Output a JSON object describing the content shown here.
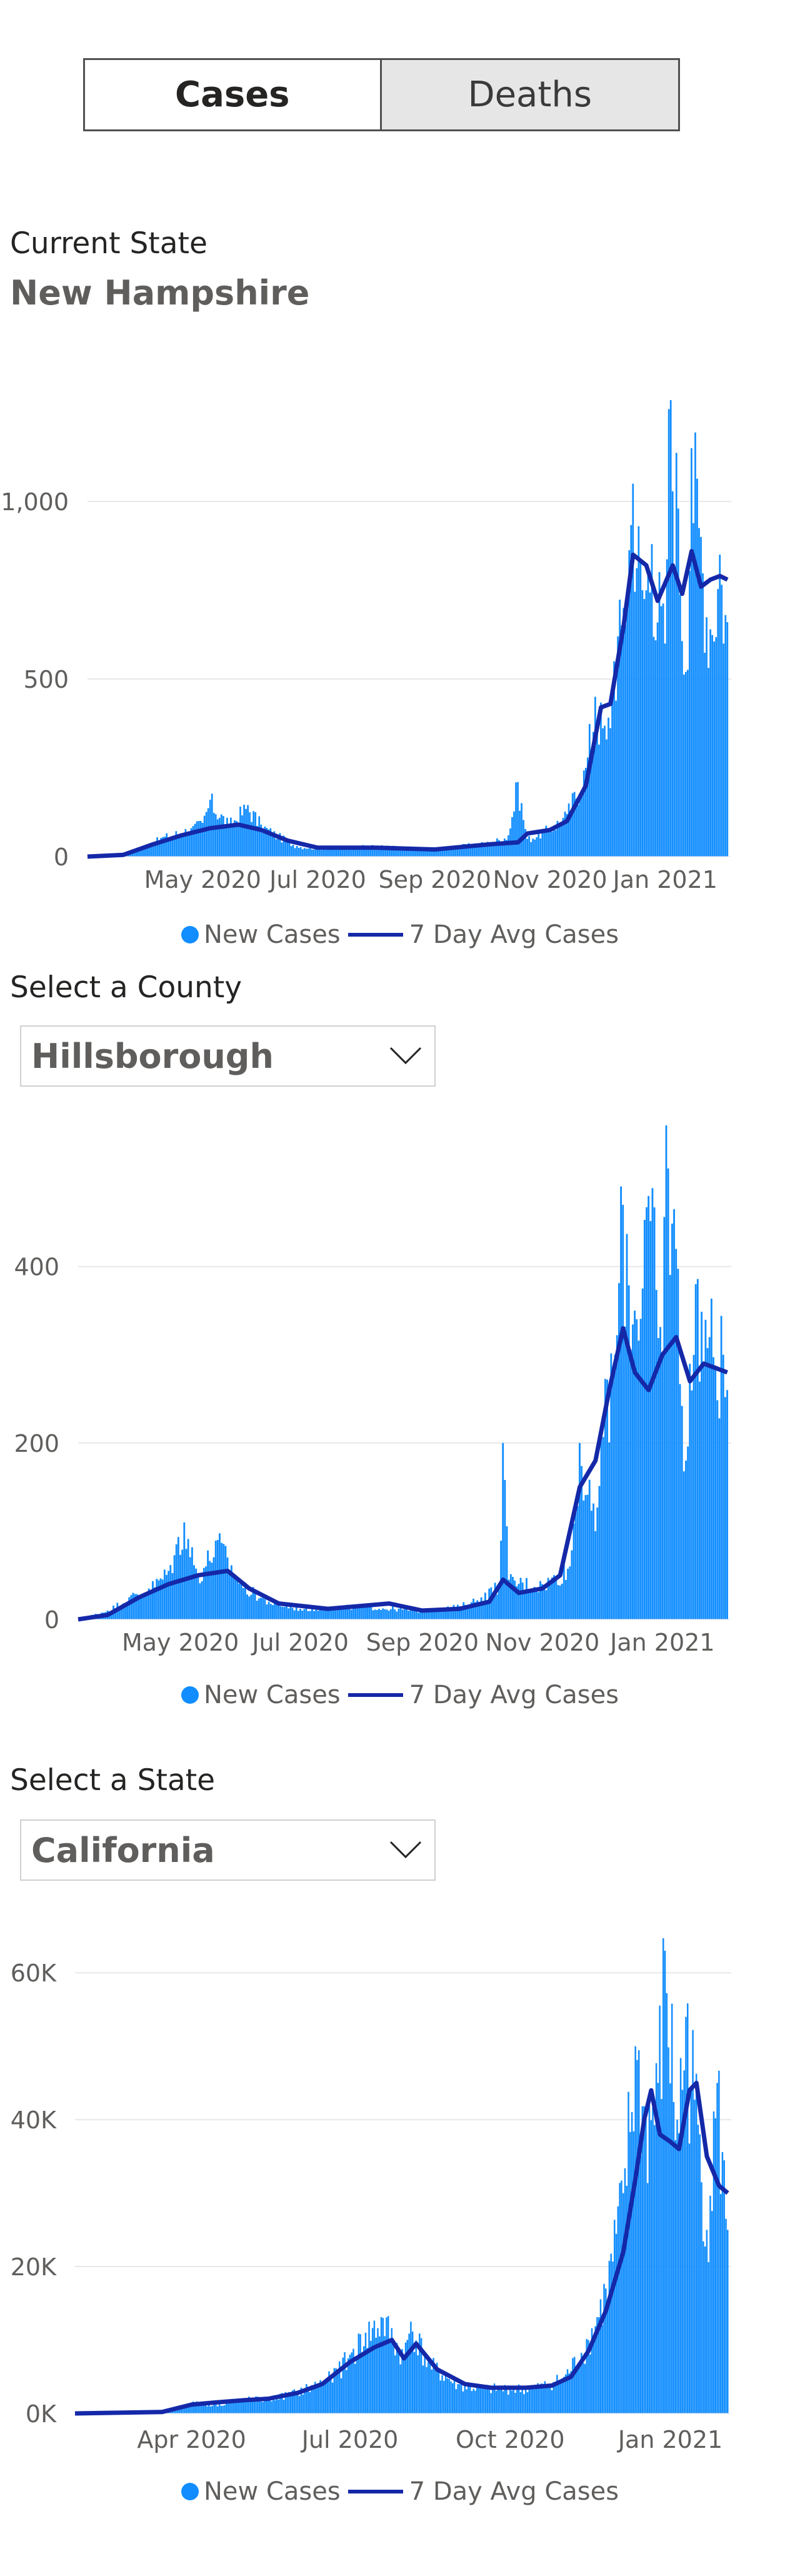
{
  "tabs": [
    {
      "label": "Cases",
      "active": true
    },
    {
      "label": "Deaths",
      "active": false
    }
  ],
  "current_state_label": "Current State",
  "current_state_name": "New Hampshire",
  "county_label": "Select a County",
  "county_value": "Hillsborough",
  "state_label": "Select a State",
  "state_value": "California",
  "colors": {
    "bars": "#118dff",
    "avg_line": "#1428a8",
    "grid": "#e8e8e8",
    "text": "#605e5c"
  },
  "icons": {
    "dropdown": "chevron-down-icon"
  },
  "legend": {
    "bars": "New Cases",
    "line": "7 Day Avg Cases"
  },
  "chart_data": [
    {
      "id": "state",
      "type": "bar",
      "title": "",
      "xlabel": "",
      "ylabel": "",
      "ylim": [
        0,
        1250
      ],
      "y_ticks": [
        0,
        500,
        1000
      ],
      "y_tick_labels": [
        "0",
        "500",
        "1,000"
      ],
      "x_range": [
        "2020-03-01",
        "2021-02-05"
      ],
      "x_ticks": [
        "2020-05-01",
        "2020-07-01",
        "2020-09-01",
        "2020-11-01",
        "2021-01-01"
      ],
      "x_tick_labels": [
        "May 2020",
        "Jul 2020",
        "Sep 2020",
        "Nov 2020",
        "Jan 2021"
      ],
      "grid": true,
      "legend_position": "bottom",
      "series": [
        {
          "name": "New Cases",
          "kind": "bars",
          "points": [
            [
              "2020-03-01",
              0
            ],
            [
              "2020-03-20",
              5
            ],
            [
              "2020-04-01",
              30
            ],
            [
              "2020-04-10",
              55
            ],
            [
              "2020-04-25",
              80
            ],
            [
              "2020-05-01",
              95
            ],
            [
              "2020-05-05",
              160
            ],
            [
              "2020-05-15",
              90
            ],
            [
              "2020-05-25",
              145
            ],
            [
              "2020-06-01",
              90
            ],
            [
              "2020-06-10",
              60
            ],
            [
              "2020-06-20",
              30
            ],
            [
              "2020-07-01",
              25
            ],
            [
              "2020-07-15",
              25
            ],
            [
              "2020-08-01",
              30
            ],
            [
              "2020-08-15",
              25
            ],
            [
              "2020-09-01",
              20
            ],
            [
              "2020-09-15",
              30
            ],
            [
              "2020-10-01",
              40
            ],
            [
              "2020-10-10",
              60
            ],
            [
              "2020-10-15",
              210
            ],
            [
              "2020-10-20",
              50
            ],
            [
              "2020-11-01",
              80
            ],
            [
              "2020-11-10",
              120
            ],
            [
              "2020-11-20",
              250
            ],
            [
              "2020-11-25",
              450
            ],
            [
              "2020-12-01",
              330
            ],
            [
              "2020-12-05",
              550
            ],
            [
              "2020-12-10",
              700
            ],
            [
              "2020-12-15",
              1050
            ],
            [
              "2020-12-20",
              750
            ],
            [
              "2020-12-25",
              880
            ],
            [
              "2021-01-01",
              600
            ],
            [
              "2021-01-03",
              1260
            ],
            [
              "2021-01-08",
              980
            ],
            [
              "2021-01-12",
              520
            ],
            [
              "2021-01-15",
              1150
            ],
            [
              "2021-01-20",
              900
            ],
            [
              "2021-01-25",
              640
            ],
            [
              "2021-01-30",
              850
            ],
            [
              "2021-02-03",
              660
            ]
          ]
        },
        {
          "name": "7 Day Avg Cases",
          "kind": "line",
          "points": [
            [
              "2020-03-01",
              0
            ],
            [
              "2020-03-20",
              5
            ],
            [
              "2020-04-05",
              35
            ],
            [
              "2020-04-20",
              60
            ],
            [
              "2020-05-05",
              80
            ],
            [
              "2020-05-20",
              90
            ],
            [
              "2020-06-01",
              75
            ],
            [
              "2020-06-15",
              45
            ],
            [
              "2020-07-01",
              25
            ],
            [
              "2020-08-01",
              25
            ],
            [
              "2020-09-01",
              20
            ],
            [
              "2020-10-01",
              35
            ],
            [
              "2020-10-15",
              40
            ],
            [
              "2020-10-20",
              65
            ],
            [
              "2020-11-01",
              75
            ],
            [
              "2020-11-10",
              100
            ],
            [
              "2020-11-20",
              200
            ],
            [
              "2020-11-28",
              420
            ],
            [
              "2020-12-03",
              430
            ],
            [
              "2020-12-10",
              650
            ],
            [
              "2020-12-15",
              850
            ],
            [
              "2020-12-22",
              820
            ],
            [
              "2020-12-28",
              720
            ],
            [
              "2021-01-05",
              820
            ],
            [
              "2021-01-10",
              740
            ],
            [
              "2021-01-15",
              860
            ],
            [
              "2021-01-20",
              760
            ],
            [
              "2021-01-25",
              780
            ],
            [
              "2021-01-30",
              790
            ],
            [
              "2021-02-03",
              780
            ]
          ]
        }
      ]
    },
    {
      "id": "county",
      "type": "bar",
      "title": "",
      "xlabel": "",
      "ylabel": "",
      "ylim": [
        0,
        560
      ],
      "y_ticks": [
        0,
        200,
        400
      ],
      "y_tick_labels": [
        "0",
        "200",
        "400"
      ],
      "x_range": [
        "2020-03-10",
        "2021-02-05"
      ],
      "x_ticks": [
        "2020-05-01",
        "2020-07-01",
        "2020-09-01",
        "2020-11-01",
        "2021-01-01"
      ],
      "x_tick_labels": [
        "May 2020",
        "Jul 2020",
        "Sep 2020",
        "Nov 2020",
        "Jan 2021"
      ],
      "grid": true,
      "legend_position": "bottom",
      "series": [
        {
          "name": "New Cases",
          "kind": "bars",
          "points": [
            [
              "2020-03-10",
              0
            ],
            [
              "2020-03-25",
              10
            ],
            [
              "2020-04-05",
              25
            ],
            [
              "2020-04-15",
              35
            ],
            [
              "2020-04-25",
              55
            ],
            [
              "2020-05-03",
              110
            ],
            [
              "2020-05-10",
              50
            ],
            [
              "2020-05-20",
              90
            ],
            [
              "2020-06-01",
              40
            ],
            [
              "2020-06-15",
              20
            ],
            [
              "2020-07-01",
              12
            ],
            [
              "2020-08-01",
              15
            ],
            [
              "2020-09-01",
              10
            ],
            [
              "2020-09-20",
              15
            ],
            [
              "2020-10-01",
              25
            ],
            [
              "2020-10-10",
              40
            ],
            [
              "2020-10-12",
              200
            ],
            [
              "2020-10-15",
              45
            ],
            [
              "2020-11-01",
              40
            ],
            [
              "2020-11-15",
              60
            ],
            [
              "2020-11-20",
              200
            ],
            [
              "2020-11-28",
              100
            ],
            [
              "2020-12-01",
              220
            ],
            [
              "2020-12-08",
              300
            ],
            [
              "2020-12-12",
              470
            ],
            [
              "2020-12-18",
              350
            ],
            [
              "2020-12-25",
              480
            ],
            [
              "2021-01-01",
              300
            ],
            [
              "2021-01-03",
              560
            ],
            [
              "2021-01-08",
              420
            ],
            [
              "2021-01-13",
              180
            ],
            [
              "2021-01-18",
              380
            ],
            [
              "2021-01-25",
              320
            ],
            [
              "2021-02-01",
              300
            ],
            [
              "2021-02-03",
              260
            ]
          ]
        },
        {
          "name": "7 Day Avg Cases",
          "kind": "line",
          "points": [
            [
              "2020-03-10",
              0
            ],
            [
              "2020-03-25",
              5
            ],
            [
              "2020-04-10",
              25
            ],
            [
              "2020-04-25",
              40
            ],
            [
              "2020-05-10",
              50
            ],
            [
              "2020-05-25",
              55
            ],
            [
              "2020-06-05",
              35
            ],
            [
              "2020-06-20",
              18
            ],
            [
              "2020-07-15",
              12
            ],
            [
              "2020-08-15",
              18
            ],
            [
              "2020-09-01",
              10
            ],
            [
              "2020-09-20",
              12
            ],
            [
              "2020-10-05",
              20
            ],
            [
              "2020-10-12",
              45
            ],
            [
              "2020-10-20",
              30
            ],
            [
              "2020-11-01",
              35
            ],
            [
              "2020-11-10",
              50
            ],
            [
              "2020-11-20",
              150
            ],
            [
              "2020-11-28",
              180
            ],
            [
              "2020-12-05",
              260
            ],
            [
              "2020-12-12",
              330
            ],
            [
              "2020-12-18",
              280
            ],
            [
              "2020-12-25",
              260
            ],
            [
              "2021-01-01",
              300
            ],
            [
              "2021-01-08",
              320
            ],
            [
              "2021-01-15",
              270
            ],
            [
              "2021-01-22",
              290
            ],
            [
              "2021-02-03",
              280
            ]
          ]
        }
      ]
    },
    {
      "id": "california",
      "type": "bar",
      "title": "",
      "xlabel": "",
      "ylabel": "",
      "ylim": [
        0,
        63000
      ],
      "y_ticks": [
        0,
        20000,
        40000,
        60000
      ],
      "y_tick_labels": [
        "0K",
        "20K",
        "40K",
        "60K"
      ],
      "x_range": [
        "2020-01-25",
        "2021-02-05"
      ],
      "x_ticks": [
        "2020-04-01",
        "2020-07-01",
        "2020-10-01",
        "2021-01-01"
      ],
      "x_tick_labels": [
        "Apr 2020",
        "Jul 2020",
        "Oct 2020",
        "Jan 2021"
      ],
      "grid": true,
      "legend_position": "bottom",
      "series": [
        {
          "name": "New Cases",
          "kind": "bars",
          "points": [
            [
              "2020-01-25",
              0
            ],
            [
              "2020-03-15",
              200
            ],
            [
              "2020-04-01",
              1500
            ],
            [
              "2020-04-15",
              1200
            ],
            [
              "2020-05-01",
              2000
            ],
            [
              "2020-05-15",
              2000
            ],
            [
              "2020-06-01",
              3000
            ],
            [
              "2020-06-20",
              5000
            ],
            [
              "2020-07-01",
              8000
            ],
            [
              "2020-07-10",
              11000
            ],
            [
              "2020-07-20",
              13000
            ],
            [
              "2020-08-01",
              8000
            ],
            [
              "2020-08-05",
              12500
            ],
            [
              "2020-08-15",
              7000
            ],
            [
              "2020-09-01",
              4000
            ],
            [
              "2020-09-15",
              3500
            ],
            [
              "2020-10-01",
              3500
            ],
            [
              "2020-10-15",
              3500
            ],
            [
              "2020-11-01",
              5000
            ],
            [
              "2020-11-15",
              10000
            ],
            [
              "2020-11-25",
              17000
            ],
            [
              "2020-12-05",
              30000
            ],
            [
              "2020-12-12",
              50000
            ],
            [
              "2020-12-18",
              40000
            ],
            [
              "2020-12-25",
              45000
            ],
            [
              "2020-12-29",
              63000
            ],
            [
              "2021-01-05",
              40000
            ],
            [
              "2021-01-10",
              54000
            ],
            [
              "2021-01-18",
              38000
            ],
            [
              "2021-01-22",
              25000
            ],
            [
              "2021-01-28",
              45000
            ],
            [
              "2021-02-03",
              25000
            ]
          ]
        },
        {
          "name": "7 Day Avg Cases",
          "kind": "line",
          "points": [
            [
              "2020-01-25",
              0
            ],
            [
              "2020-03-15",
              200
            ],
            [
              "2020-04-01",
              1200
            ],
            [
              "2020-04-15",
              1500
            ],
            [
              "2020-05-01",
              1800
            ],
            [
              "2020-05-15",
              2000
            ],
            [
              "2020-06-01",
              2800
            ],
            [
              "2020-06-15",
              4000
            ],
            [
              "2020-07-01",
              7000
            ],
            [
              "2020-07-15",
              9000
            ],
            [
              "2020-07-25",
              10000
            ],
            [
              "2020-08-01",
              7500
            ],
            [
              "2020-08-08",
              9500
            ],
            [
              "2020-08-20",
              6000
            ],
            [
              "2020-09-05",
              4000
            ],
            [
              "2020-09-20",
              3500
            ],
            [
              "2020-10-10",
              3500
            ],
            [
              "2020-10-25",
              3800
            ],
            [
              "2020-11-05",
              5000
            ],
            [
              "2020-11-15",
              8500
            ],
            [
              "2020-11-25",
              14000
            ],
            [
              "2020-12-05",
              22000
            ],
            [
              "2020-12-12",
              32000
            ],
            [
              "2020-12-17",
              40000
            ],
            [
              "2020-12-21",
              44000
            ],
            [
              "2020-12-26",
              38000
            ],
            [
              "2021-01-01",
              37000
            ],
            [
              "2021-01-06",
              36000
            ],
            [
              "2021-01-12",
              44000
            ],
            [
              "2021-01-16",
              45000
            ],
            [
              "2021-01-22",
              35000
            ],
            [
              "2021-01-29",
              31000
            ],
            [
              "2021-02-03",
              30000
            ]
          ]
        }
      ]
    }
  ]
}
